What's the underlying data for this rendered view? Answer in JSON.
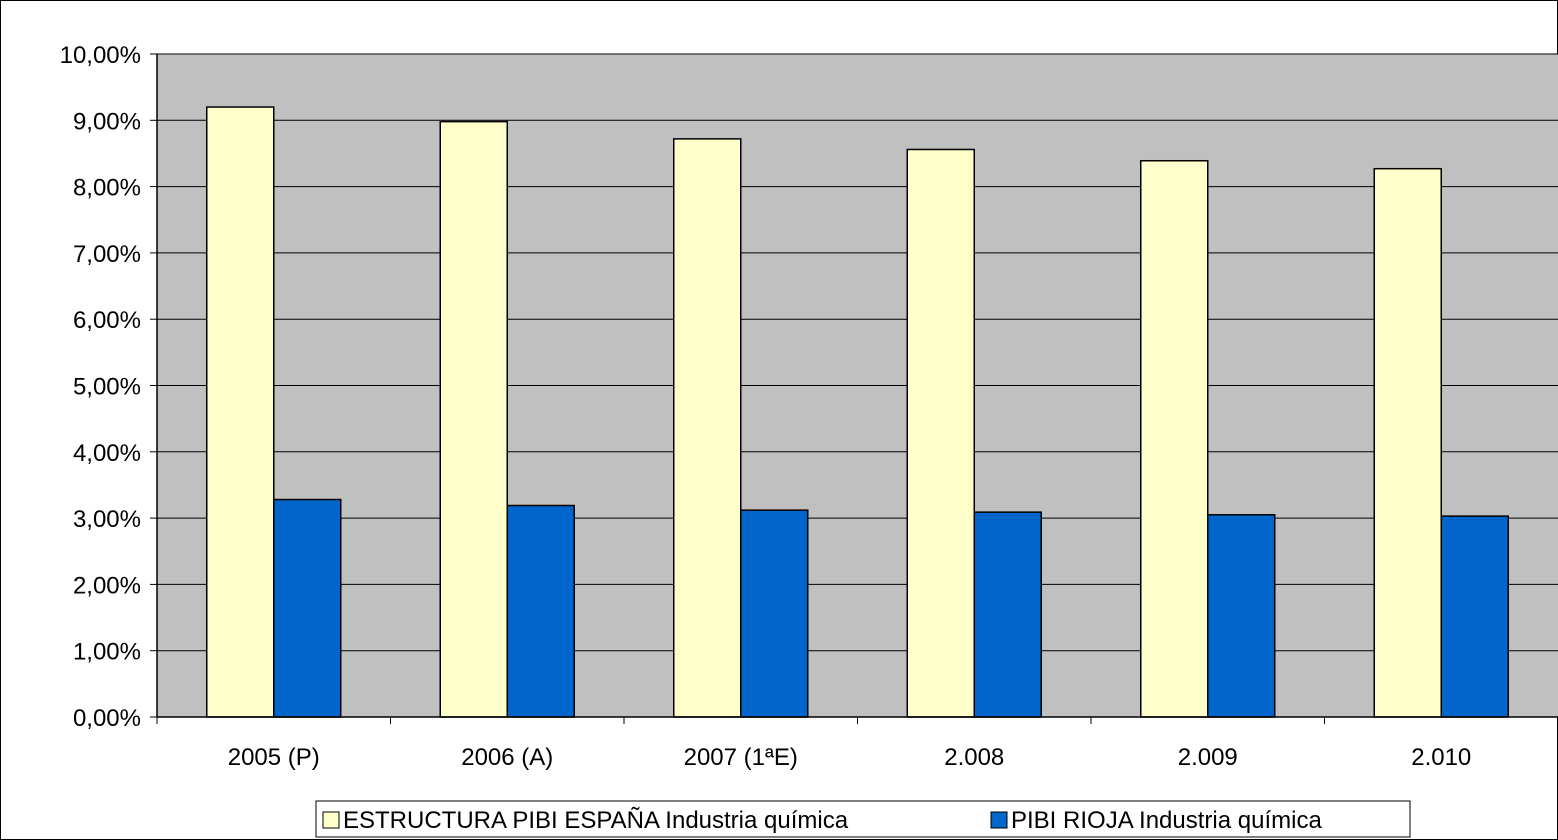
{
  "chart_data": {
    "type": "bar",
    "categories": [
      "2005 (P)",
      "2006 (A)",
      "2007 (1ªE)",
      "2.008",
      "2.009",
      "2.010"
    ],
    "series": [
      {
        "name": "ESTRUCTURA PIBI ESPAÑA Industria química",
        "values": [
          9.2,
          8.98,
          8.72,
          8.56,
          8.39,
          8.27
        ],
        "color": "#FFFFCC"
      },
      {
        "name": "PIBI RIOJA Industria química",
        "values": [
          3.28,
          3.19,
          3.12,
          3.09,
          3.05,
          3.03
        ],
        "color": "#0066CC"
      }
    ],
    "ylim": [
      0,
      10
    ],
    "yticks": [
      "0,00%",
      "1,00%",
      "2,00%",
      "3,00%",
      "4,00%",
      "5,00%",
      "6,00%",
      "7,00%",
      "8,00%",
      "9,00%",
      "10,00%"
    ],
    "grid": true,
    "legend_position": "bottom",
    "plot_background": "#C0C0C0"
  }
}
